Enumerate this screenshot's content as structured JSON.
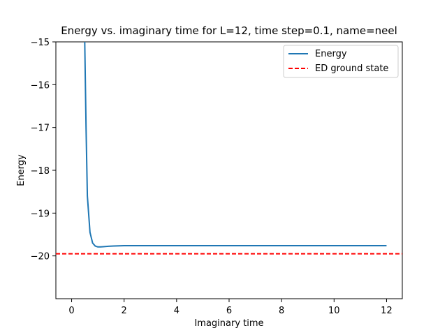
{
  "chart_data": {
    "type": "line",
    "title": "Energy vs. imaginary time for L=12, time step=0.1, name=neel",
    "xlabel": "Imaginary time",
    "ylabel": "Energy",
    "xlim": [
      -0.6,
      12.6
    ],
    "ylim": [
      -21.0,
      -15.0
    ],
    "xticks": [
      0,
      2,
      4,
      6,
      8,
      10,
      12
    ],
    "yticks": [
      -20,
      -19,
      -18,
      -17,
      -16,
      -15
    ],
    "grid": false,
    "legend_position": "top-right",
    "series": [
      {
        "name": "Energy",
        "color": "#1f77b4",
        "style": "solid",
        "x": [
          0.5,
          0.55,
          0.6,
          0.7,
          0.8,
          0.9,
          1.0,
          1.1,
          1.2,
          1.4,
          1.6,
          1.8,
          2.0,
          3.0,
          4.0,
          6.0,
          8.0,
          10.0,
          12.0
        ],
        "y": [
          -15.0,
          -17.0,
          -18.6,
          -19.45,
          -19.7,
          -19.77,
          -19.79,
          -19.79,
          -19.785,
          -19.775,
          -19.77,
          -19.765,
          -19.76,
          -19.76,
          -19.76,
          -19.76,
          -19.76,
          -19.76,
          -19.76
        ]
      },
      {
        "name": "ED ground state",
        "color": "#ff0000",
        "style": "dashed",
        "type": "hline",
        "y": -19.95
      }
    ]
  }
}
